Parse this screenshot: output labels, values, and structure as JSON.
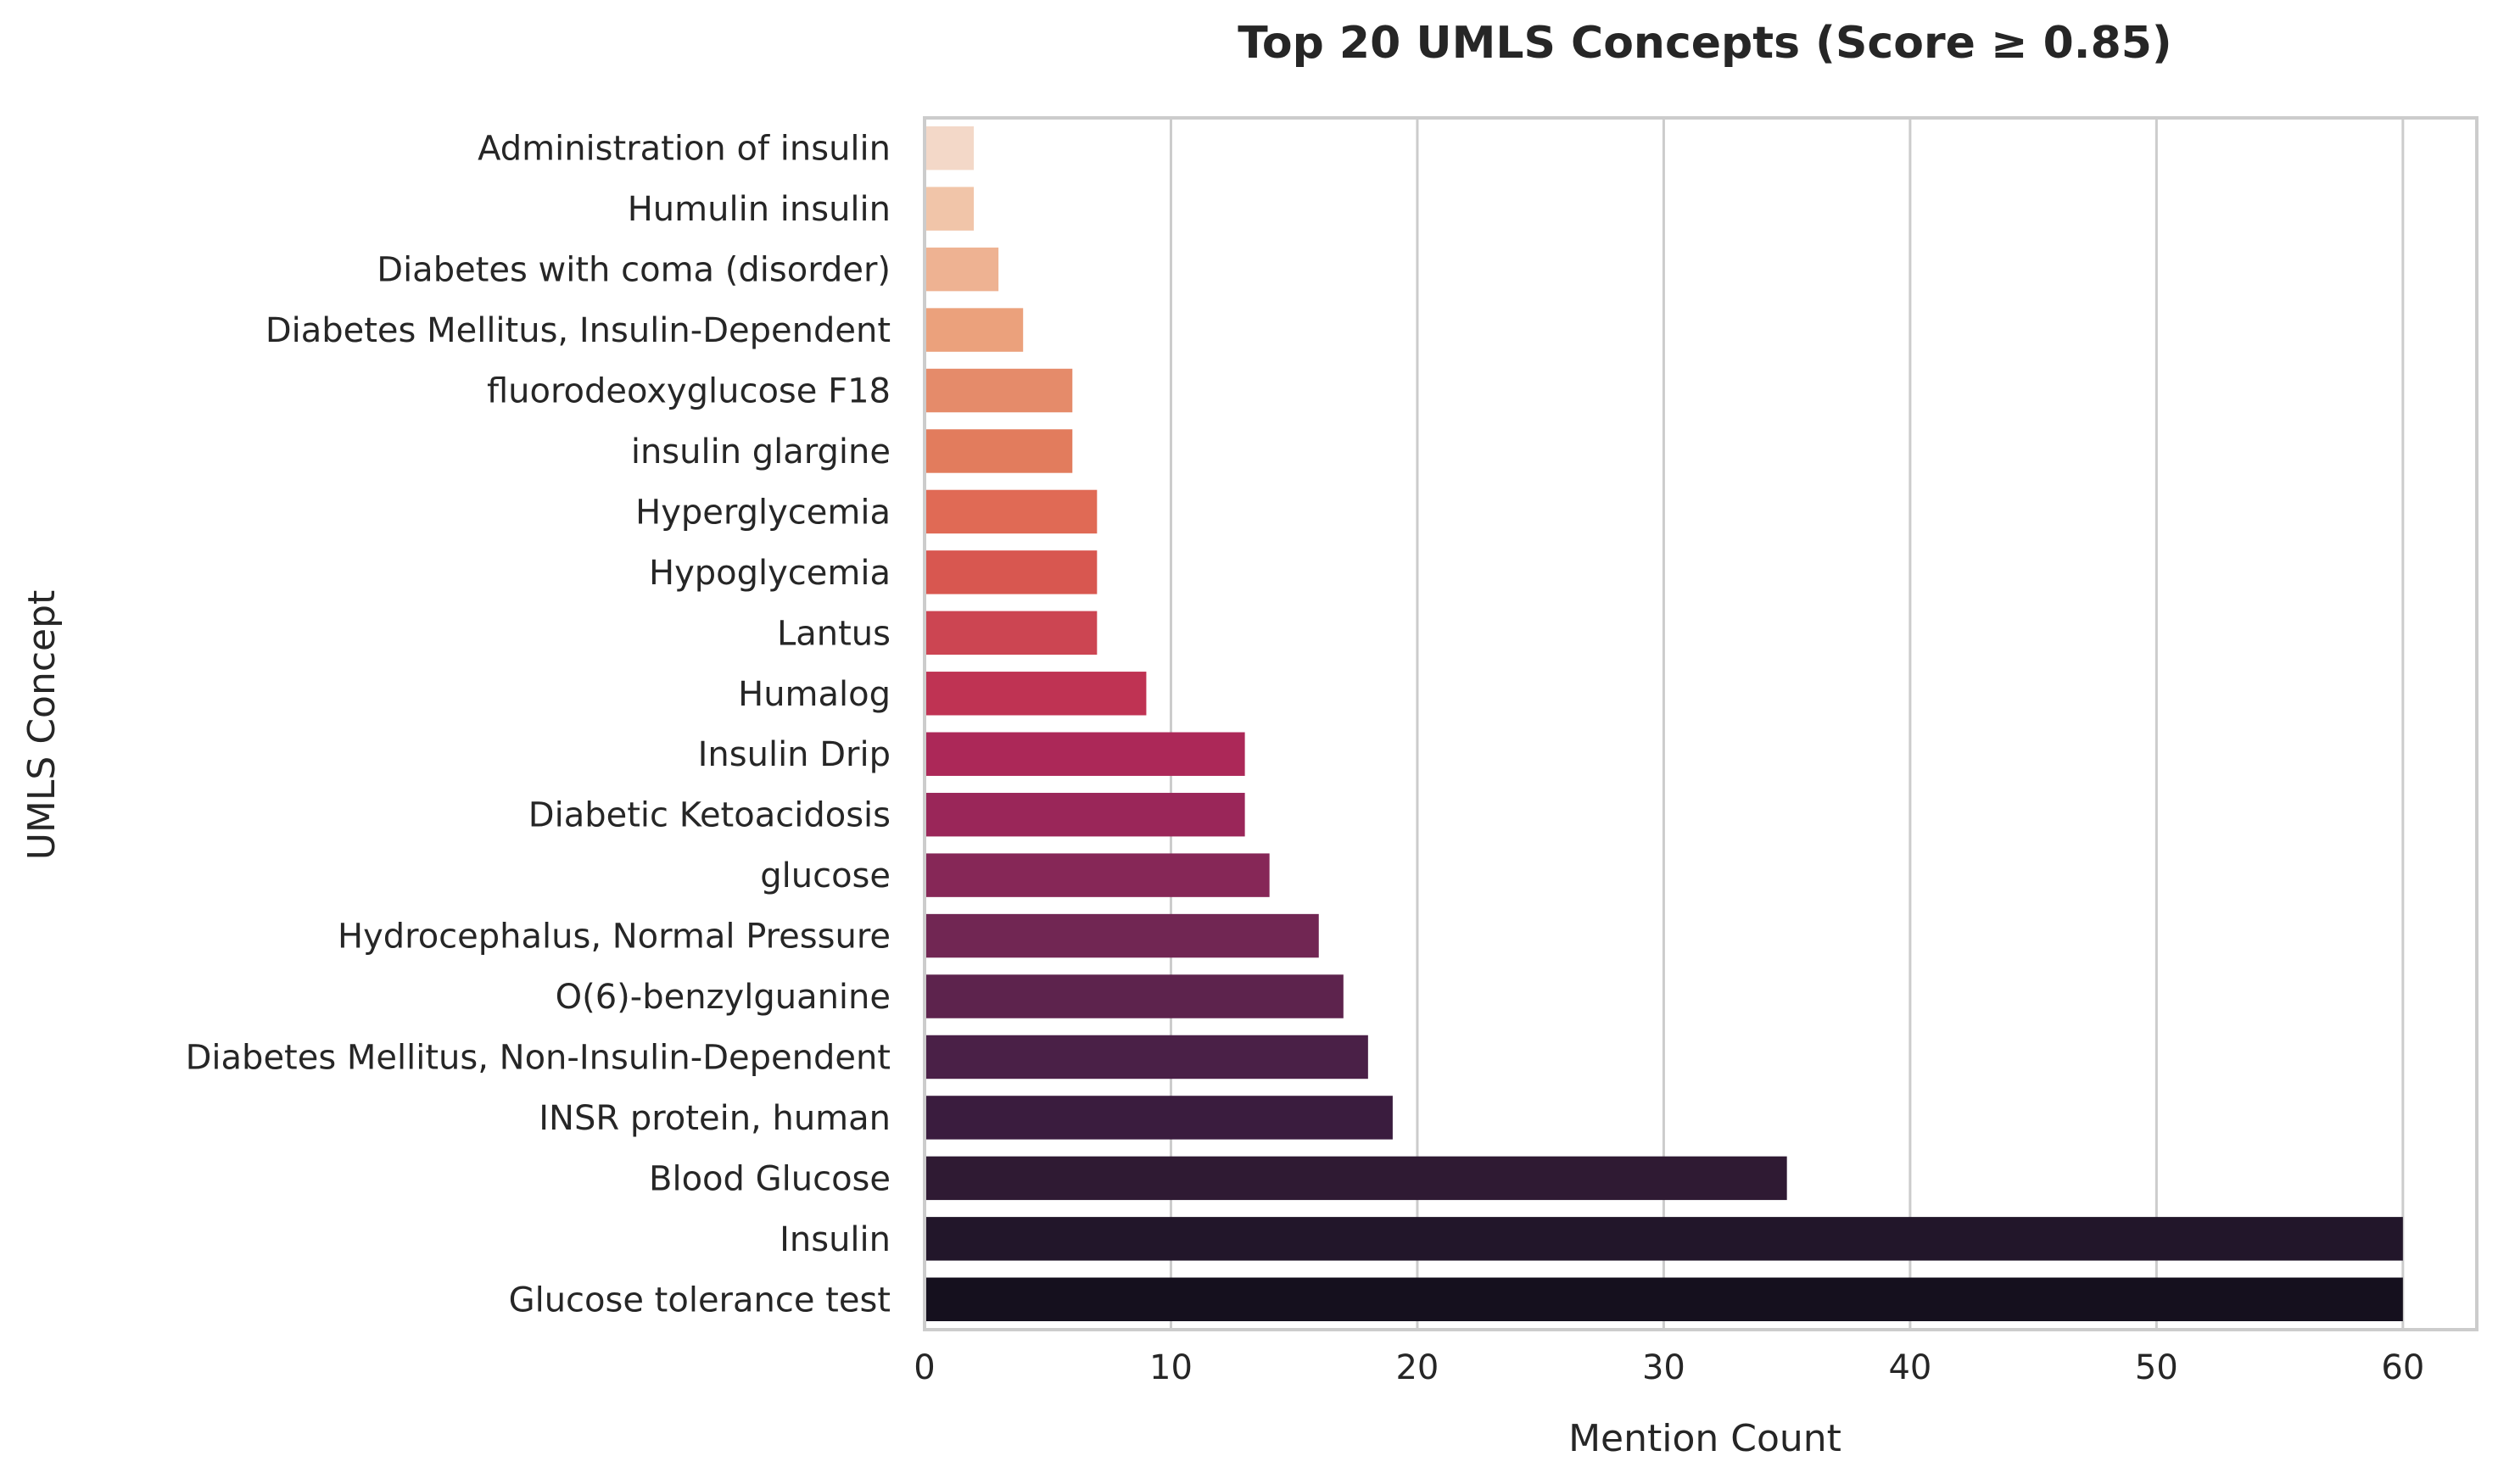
{
  "chart_data": {
    "type": "bar",
    "orientation": "horizontal",
    "title": "Top 20 UMLS Concepts (Score ≥ 0.85)",
    "xlabel": "Mention Count",
    "ylabel": "UMLS Concept",
    "xlim": [
      0,
      63
    ],
    "xticks": [
      0,
      10,
      20,
      30,
      40,
      50,
      60
    ],
    "grid": "vertical",
    "categories": [
      "Administration of insulin",
      "Humulin insulin",
      "Diabetes with coma (disorder)",
      "Diabetes Mellitus, Insulin-Dependent",
      "fluorodeoxyglucose F18",
      "insulin glargine",
      "Hyperglycemia",
      "Hypoglycemia",
      "Lantus",
      "Humalog",
      "Insulin Drip",
      "Diabetic Ketoacidosis",
      "glucose",
      "Hydrocephalus, Normal Pressure",
      "O(6)-benzylguanine",
      "Diabetes Mellitus, Non-Insulin-Dependent",
      "INSR protein, human",
      "Blood Glucose",
      "Insulin",
      "Glucose tolerance test"
    ],
    "values": [
      2,
      2,
      3,
      4,
      6,
      6,
      7,
      7,
      7,
      9,
      13,
      13,
      14,
      16,
      17,
      18,
      19,
      35,
      60,
      60
    ],
    "colors": [
      "#f3d8c8",
      "#f1c5a9",
      "#eeb292",
      "#eba17c",
      "#e58b6a",
      "#e27c5d",
      "#e06a55",
      "#d85750",
      "#cc4552",
      "#bf3353",
      "#ac2858",
      "#9a2659",
      "#862757",
      "#712653",
      "#5d234d",
      "#4a2047",
      "#3a1c3e",
      "#2f1a33",
      "#22162a",
      "#15101e"
    ]
  }
}
